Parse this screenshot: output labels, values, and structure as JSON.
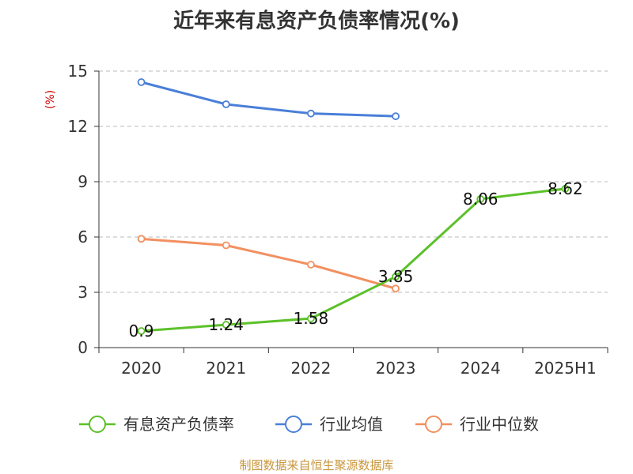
{
  "chart_data": {
    "type": "line",
    "title": "近年来有息资产负债率情况(%)",
    "ylabel": "(%)",
    "xlabel": "",
    "categories": [
      "2020",
      "2021",
      "2022",
      "2023",
      "2024",
      "2025H1"
    ],
    "ylim": [
      0,
      15
    ],
    "yticks": [
      "0",
      "3",
      "6",
      "9",
      "12",
      "15"
    ],
    "grid": "horizontal-dashed",
    "legend_position": "bottom",
    "series": [
      {
        "name": "有息资产负债率",
        "color": "#5cc12a",
        "values": [
          0.9,
          1.24,
          1.58,
          3.85,
          8.06,
          8.62
        ],
        "labels": [
          "0.9",
          "1.24",
          "1.58",
          "3.85",
          "8.06",
          "8.62"
        ]
      },
      {
        "name": "行业均值",
        "color": "#4a7fd8",
        "values": [
          14.4,
          13.2,
          12.7,
          12.55,
          null,
          null
        ]
      },
      {
        "name": "行业中位数",
        "color": "#f29060",
        "values": [
          5.9,
          5.55,
          4.5,
          3.2,
          null,
          null
        ]
      }
    ]
  },
  "source_text": "制图数据来自恒生聚源数据库"
}
